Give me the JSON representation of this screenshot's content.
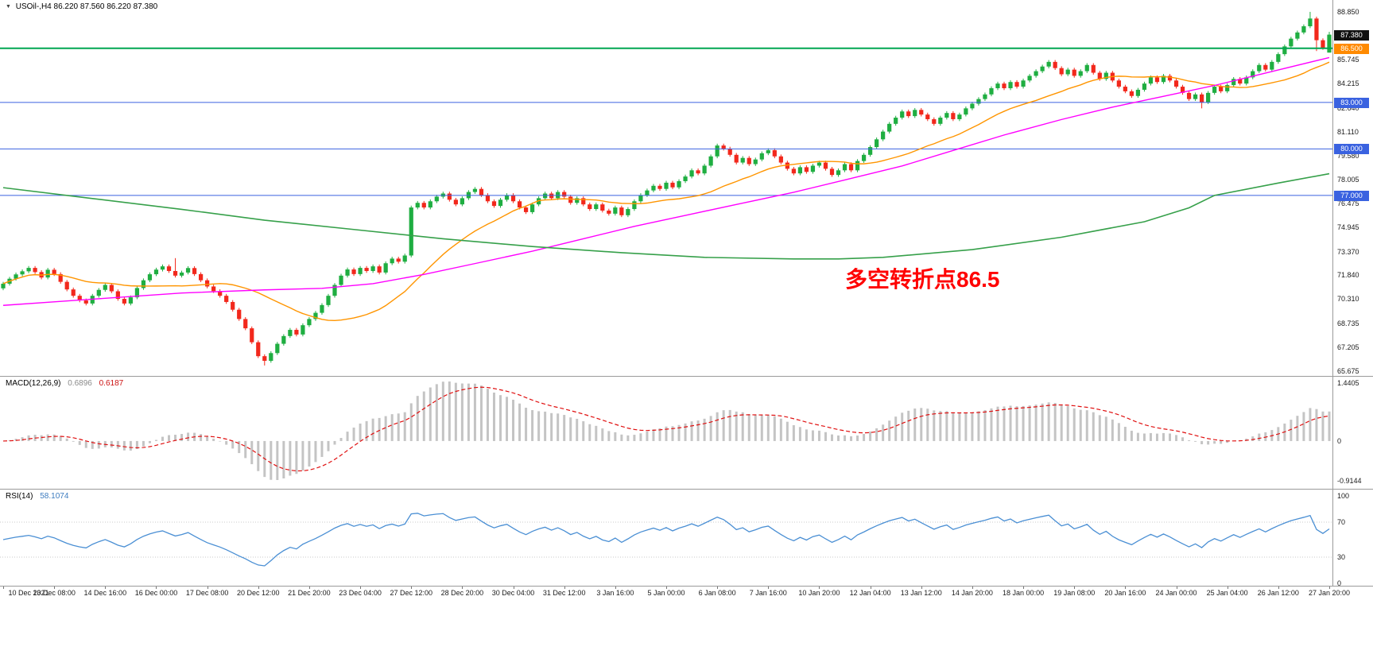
{
  "header": {
    "shift_marker": "▼",
    "symbol_period": "USOil-,H4",
    "ohlc": "86.220 87.560 86.220 87.380"
  },
  "annotation": {
    "text": "多空转折点86.5",
    "color": "#ff0000"
  },
  "colors": {
    "up": "#1fae41",
    "down": "#f2281c",
    "ma_fast": "#ff9500",
    "ma_mid": "#ff00ff",
    "ma_slow": "#36a04a",
    "macd_hist": "#c4c4c4",
    "macd_signal": "#e01010",
    "rsi": "#4a8fd4",
    "level_blue": "#3a62e0",
    "level_green": "#00a651",
    "badge_black": "#111111",
    "badge_orange": "#ff8a00",
    "axis_text": "#1a1a1a"
  },
  "chart_data": [
    {
      "type": "candlestick",
      "title": "USOil- H4",
      "x_label_step": 8,
      "x_labels": [
        "10 Dec 2021",
        "13 Dec 08:00",
        "14 Dec 16:00",
        "16 Dec 00:00",
        "17 Dec 08:00",
        "20 Dec 12:00",
        "21 Dec 20:00",
        "23 Dec 04:00",
        "27 Dec 12:00",
        "28 Dec 20:00",
        "30 Dec 04:00",
        "31 Dec 12:00",
        "3 Jan 16:00",
        "5 Jan 00:00",
        "6 Jan 08:00",
        "7 Jan 16:00",
        "10 Jan 20:00",
        "12 Jan 04:00",
        "13 Jan 12:00",
        "14 Jan 20:00",
        "18 Jan 00:00",
        "19 Jan 08:00",
        "20 Jan 16:00",
        "24 Jan 00:00",
        "25 Jan 04:00",
        "26 Jan 12:00",
        "27 Jan 20:00"
      ],
      "open_first": 71.0,
      "default_wick": 0.12,
      "closes": [
        71.3,
        71.62,
        71.9,
        72.1,
        72.32,
        72.05,
        71.7,
        72.2,
        71.92,
        71.42,
        70.93,
        70.52,
        70.22,
        70.02,
        70.52,
        70.9,
        71.22,
        70.81,
        70.32,
        70.02,
        70.42,
        71.02,
        71.52,
        71.91,
        72.21,
        72.42,
        72.12,
        71.82,
        72.02,
        72.31,
        71.92,
        71.52,
        71.12,
        70.82,
        70.52,
        70.12,
        69.62,
        69.02,
        68.42,
        67.52,
        66.62,
        66.32,
        66.82,
        67.42,
        67.92,
        68.32,
        68.02,
        68.62,
        69.02,
        69.42,
        69.92,
        70.52,
        71.22,
        71.82,
        72.22,
        71.92,
        72.32,
        72.12,
        72.42,
        72.02,
        72.62,
        72.92,
        72.72,
        73.12,
        76.22,
        76.52,
        76.22,
        76.62,
        76.92,
        77.12,
        76.72,
        76.42,
        76.82,
        77.22,
        77.42,
        77.02,
        76.62,
        76.32,
        76.72,
        77.02,
        76.62,
        76.22,
        75.92,
        76.42,
        76.82,
        77.12,
        76.82,
        77.22,
        76.92,
        76.52,
        76.82,
        76.42,
        76.12,
        76.42,
        76.02,
        75.82,
        76.22,
        75.72,
        76.12,
        76.62,
        77.02,
        77.32,
        77.62,
        77.42,
        77.82,
        77.52,
        77.92,
        78.22,
        78.62,
        78.42,
        78.92,
        79.52,
        80.22,
        80.02,
        79.62,
        79.12,
        79.42,
        79.02,
        79.32,
        79.72,
        79.92,
        79.52,
        79.12,
        78.72,
        78.42,
        78.82,
        78.52,
        78.92,
        79.12,
        78.72,
        78.32,
        78.62,
        79.02,
        78.62,
        79.22,
        79.62,
        80.12,
        80.62,
        81.12,
        81.62,
        82.02,
        82.42,
        82.12,
        82.52,
        82.22,
        81.92,
        81.62,
        82.02,
        82.32,
        81.92,
        82.22,
        82.62,
        82.92,
        83.22,
        83.52,
        83.92,
        84.22,
        83.92,
        84.32,
        84.02,
        84.42,
        84.72,
        85.02,
        85.32,
        85.62,
        85.22,
        84.82,
        85.12,
        84.72,
        85.02,
        85.42,
        84.92,
        84.52,
        84.92,
        84.42,
        84.02,
        83.72,
        83.42,
        83.82,
        84.22,
        84.62,
        84.32,
        84.72,
        84.42,
        84.02,
        83.62,
        83.22,
        83.52,
        83.02,
        83.62,
        84.02,
        83.72,
        84.12,
        84.52,
        84.22,
        84.62,
        85.02,
        85.42,
        85.12,
        85.62,
        86.12,
        86.62,
        87.12,
        87.52,
        87.92,
        88.42,
        87.02,
        86.52,
        87.38
      ],
      "overrides": {
        "27": {
          "h": 72.95
        },
        "41": {
          "l": 66.02
        },
        "188": {
          "l": 82.62
        },
        "205": {
          "h": 88.85
        },
        "206": {
          "l": 86.32
        },
        "208": {
          "o": 86.22,
          "h": 87.56,
          "l": 86.22
        }
      },
      "ylim": [
        65.5,
        89.0
      ],
      "y_ticks": [
        "88.850",
        "85.745",
        "84.215",
        "82.640",
        "81.110",
        "79.580",
        "78.005",
        "76.475",
        "74.945",
        "73.370",
        "71.840",
        "70.310",
        "68.735",
        "67.205",
        "65.675"
      ],
      "price_badges": [
        {
          "label": "87.380",
          "value": 87.38,
          "bg": "#111111"
        },
        {
          "label": "86.500",
          "value": 86.5,
          "bg": "#ff8a00"
        },
        {
          "label": "83.000",
          "value": 83.0,
          "bg": "#3a62e0"
        },
        {
          "label": "80.000",
          "value": 80.0,
          "bg": "#3a62e0"
        },
        {
          "label": "77.000",
          "value": 77.0,
          "bg": "#3a62e0"
        }
      ],
      "h_lines": [
        {
          "value": 86.5,
          "color": "#00a651",
          "width": 2
        },
        {
          "value": 83.0,
          "color": "#3a62e0",
          "width": 1
        },
        {
          "value": 80.0,
          "color": "#3a62e0",
          "width": 1
        },
        {
          "value": 77.0,
          "color": "#3a62e0",
          "width": 1
        }
      ],
      "ma_fast_period": 21,
      "ma_mid_anchors": [
        [
          0,
          69.9
        ],
        [
          14,
          70.3
        ],
        [
          28,
          70.7
        ],
        [
          41,
          70.9
        ],
        [
          50,
          71.0
        ],
        [
          58,
          71.3
        ],
        [
          66,
          71.9
        ],
        [
          74,
          72.6
        ],
        [
          83,
          73.4
        ],
        [
          91,
          74.2
        ],
        [
          99,
          75.0
        ],
        [
          108,
          75.8
        ],
        [
          116,
          76.5
        ],
        [
          124,
          77.2
        ],
        [
          132,
          78.0
        ],
        [
          141,
          78.9
        ],
        [
          149,
          79.9
        ],
        [
          157,
          80.9
        ],
        [
          166,
          81.9
        ],
        [
          174,
          82.7
        ],
        [
          182,
          83.4
        ],
        [
          190,
          84.1
        ],
        [
          198,
          84.9
        ],
        [
          208,
          85.9
        ]
      ],
      "ma_slow_anchors": [
        [
          0,
          77.5
        ],
        [
          14,
          76.8
        ],
        [
          28,
          76.1
        ],
        [
          41,
          75.4
        ],
        [
          55,
          74.8
        ],
        [
          69,
          74.2
        ],
        [
          83,
          73.7
        ],
        [
          97,
          73.3
        ],
        [
          110,
          73.0
        ],
        [
          124,
          72.9
        ],
        [
          131,
          72.9
        ],
        [
          138,
          73.0
        ],
        [
          152,
          73.5
        ],
        [
          166,
          74.3
        ],
        [
          179,
          75.3
        ],
        [
          186,
          76.2
        ],
        [
          190,
          77.0
        ],
        [
          200,
          77.8
        ],
        [
          208,
          78.4
        ]
      ]
    },
    {
      "type": "bar",
      "subtype": "macd_histogram",
      "label": "MACD(12,26,9)",
      "value_main": "0.6896",
      "value_signal": "0.6187",
      "params": [
        12,
        26,
        9
      ],
      "y_ticks": [
        "1.4405",
        "0",
        "-0.9144"
      ]
    },
    {
      "type": "line",
      "subtype": "rsi",
      "label": "RSI(14)",
      "value": "58.1074",
      "period": 14,
      "levels": [
        70,
        30
      ],
      "ylim": [
        0,
        100
      ],
      "y_ticks": [
        "100",
        "70",
        "30",
        "0"
      ]
    }
  ]
}
